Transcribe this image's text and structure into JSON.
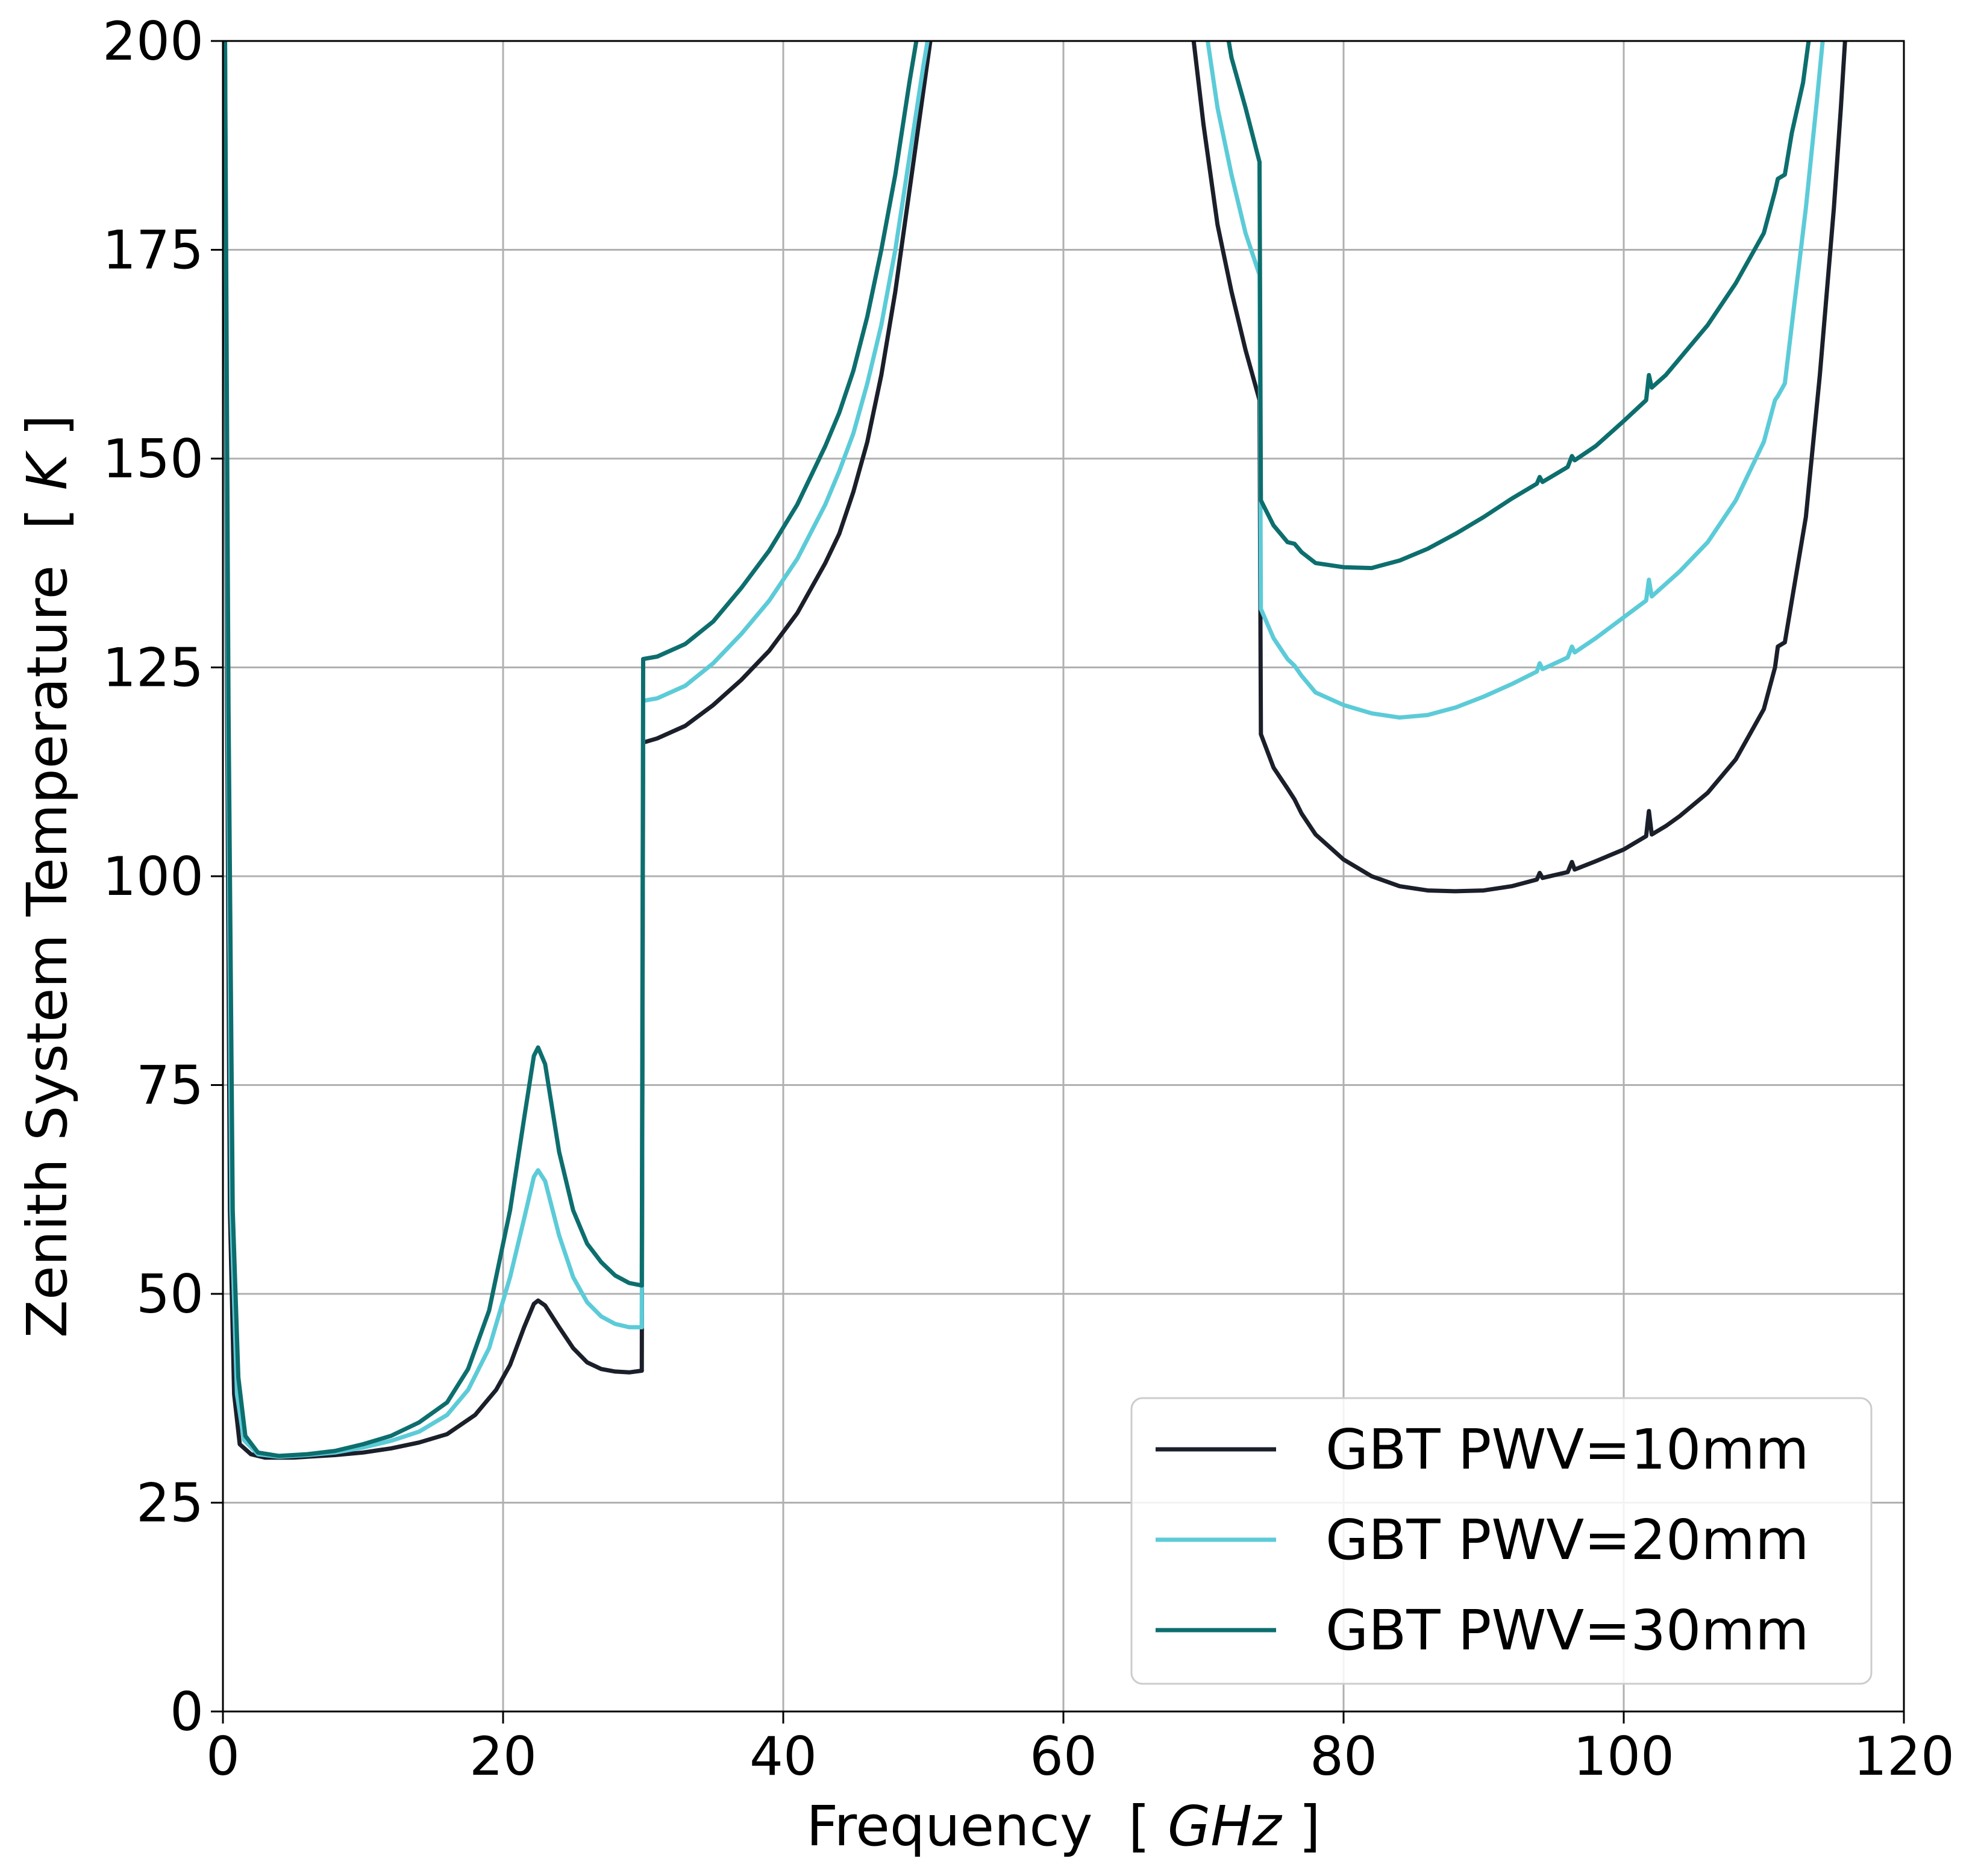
{
  "chart_data": {
    "type": "line",
    "title": "",
    "xlabel": {
      "main": "Frequency",
      "open": "[",
      "unit": "GHz",
      "close": "]"
    },
    "ylabel": {
      "main": "Zenith System Temperature",
      "open": "[",
      "unit": "K",
      "close": "]"
    },
    "xlim": [
      0,
      120
    ],
    "ylim": [
      0,
      200
    ],
    "xticks": [
      0,
      20,
      40,
      60,
      80,
      100,
      120
    ],
    "yticks": [
      0,
      25,
      50,
      75,
      100,
      125,
      150,
      175,
      200
    ],
    "grid": true,
    "legend_position": "lower-right",
    "series": [
      {
        "name": "GBT PWV=10mm",
        "color": "#1b1f2a",
        "segments": [
          [
            [
              0.15,
              200
            ],
            [
              0.3,
              120
            ],
            [
              0.5,
              60
            ],
            [
              0.8,
              38
            ],
            [
              1.2,
              32
            ],
            [
              2,
              30.8
            ],
            [
              3,
              30.4
            ],
            [
              5,
              30.4
            ],
            [
              8,
              30.7
            ],
            [
              10,
              31
            ],
            [
              12,
              31.5
            ],
            [
              14,
              32.2
            ],
            [
              16,
              33.2
            ],
            [
              18,
              35.5
            ],
            [
              19.5,
              38.5
            ],
            [
              20.5,
              41.5
            ],
            [
              21.5,
              46
            ],
            [
              22.2,
              48.8
            ],
            [
              22.5,
              49.2
            ],
            [
              23,
              48.6
            ],
            [
              24,
              46
            ],
            [
              25,
              43.5
            ],
            [
              26,
              41.8
            ],
            [
              27,
              41
            ],
            [
              28,
              40.7
            ],
            [
              29,
              40.6
            ],
            [
              29.9,
              40.8
            ]
          ],
          [
            [
              29.9,
              40.8
            ],
            [
              30,
              116
            ]
          ],
          [
            [
              30,
              116
            ],
            [
              31,
              116.5
            ],
            [
              33,
              118
            ],
            [
              35,
              120.5
            ],
            [
              37,
              123.5
            ],
            [
              39,
              127
            ],
            [
              41,
              131.5
            ],
            [
              43,
              137.5
            ],
            [
              44,
              141
            ],
            [
              45,
              146
            ],
            [
              46,
              152
            ],
            [
              47,
              160
            ],
            [
              48,
              170
            ],
            [
              49,
              182
            ],
            [
              50,
              194
            ],
            [
              50.5,
              200
            ]
          ],
          [
            [
              69.3,
              200
            ],
            [
              70,
              190
            ],
            [
              71,
              178
            ],
            [
              72,
              170
            ],
            [
              73,
              163
            ],
            [
              74,
              157
            ]
          ],
          [
            [
              74,
              157
            ],
            [
              74.1,
              117
            ]
          ],
          [
            [
              74.1,
              117
            ],
            [
              75,
              113
            ],
            [
              76,
              110.5
            ],
            [
              76.5,
              109.2
            ],
            [
              77,
              107.5
            ],
            [
              78,
              105
            ],
            [
              80,
              102
            ],
            [
              82,
              100
            ],
            [
              84,
              98.8
            ],
            [
              86,
              98.3
            ],
            [
              88,
              98.2
            ],
            [
              90,
              98.3
            ],
            [
              92,
              98.8
            ],
            [
              93.8,
              99.6
            ],
            [
              94,
              100.4
            ],
            [
              94.2,
              99.8
            ],
            [
              96,
              100.5
            ],
            [
              96.3,
              101.7
            ],
            [
              96.5,
              100.8
            ],
            [
              98,
              101.8
            ],
            [
              100,
              103.2
            ],
            [
              101.6,
              104.8
            ],
            [
              101.8,
              107.8
            ],
            [
              102,
              105
            ],
            [
              103,
              106
            ],
            [
              104,
              107.2
            ],
            [
              106,
              110
            ],
            [
              108,
              114
            ],
            [
              110,
              120
            ],
            [
              110.8,
              125
            ],
            [
              111,
              127.5
            ],
            [
              111.5,
              128
            ],
            [
              112,
              133
            ],
            [
              113,
              143
            ],
            [
              114,
              160
            ],
            [
              115,
              180
            ],
            [
              115.5,
              192
            ],
            [
              115.8,
              200
            ]
          ]
        ]
      },
      {
        "name": "GBT PWV=20mm",
        "color": "#5ccbd8",
        "segments": [
          [
            [
              0.15,
              200
            ],
            [
              0.35,
              120
            ],
            [
              0.6,
              60
            ],
            [
              1,
              38
            ],
            [
              1.5,
              32.5
            ],
            [
              2.5,
              30.8
            ],
            [
              4,
              30.5
            ],
            [
              6,
              30.7
            ],
            [
              8,
              31
            ],
            [
              10,
              31.6
            ],
            [
              12,
              32.4
            ],
            [
              14,
              33.5
            ],
            [
              16,
              35.5
            ],
            [
              17.5,
              38.5
            ],
            [
              19,
              43.5
            ],
            [
              20.5,
              52
            ],
            [
              21.5,
              59
            ],
            [
              22.2,
              64
            ],
            [
              22.5,
              64.8
            ],
            [
              23,
              63.5
            ],
            [
              24,
              57
            ],
            [
              25,
              52
            ],
            [
              26,
              49
            ],
            [
              27,
              47.3
            ],
            [
              28,
              46.4
            ],
            [
              29,
              46
            ],
            [
              29.9,
              46
            ]
          ],
          [
            [
              29.9,
              46
            ],
            [
              30,
              121
            ]
          ],
          [
            [
              30,
              121
            ],
            [
              31,
              121.3
            ],
            [
              33,
              122.8
            ],
            [
              35,
              125.5
            ],
            [
              37,
              129
            ],
            [
              39,
              133
            ],
            [
              41,
              138
            ],
            [
              43,
              144.5
            ],
            [
              44,
              148.5
            ],
            [
              45,
              153
            ],
            [
              46,
              159
            ],
            [
              47,
              166
            ],
            [
              48,
              175
            ],
            [
              49,
              186
            ],
            [
              50,
              197
            ],
            [
              50.3,
              200
            ]
          ],
          [
            [
              70.3,
              200
            ],
            [
              71,
              192
            ],
            [
              72,
              184
            ],
            [
              73,
              177
            ],
            [
              74,
              172
            ]
          ],
          [
            [
              74,
              172
            ],
            [
              74.1,
              132
            ]
          ],
          [
            [
              74.1,
              132
            ],
            [
              75,
              128.5
            ],
            [
              76,
              126
            ],
            [
              76.5,
              125.2
            ],
            [
              77,
              124
            ],
            [
              78,
              122
            ],
            [
              80,
              120.5
            ],
            [
              82,
              119.5
            ],
            [
              84,
              119
            ],
            [
              86,
              119.3
            ],
            [
              88,
              120.2
            ],
            [
              90,
              121.5
            ],
            [
              92,
              123
            ],
            [
              93.8,
              124.5
            ],
            [
              94,
              125.5
            ],
            [
              94.2,
              124.8
            ],
            [
              96,
              126.2
            ],
            [
              96.3,
              127.5
            ],
            [
              96.5,
              126.8
            ],
            [
              98,
              128.5
            ],
            [
              100,
              131
            ],
            [
              101.6,
              133
            ],
            [
              101.8,
              135.5
            ],
            [
              102,
              133.5
            ],
            [
              103,
              135
            ],
            [
              104,
              136.5
            ],
            [
              106,
              140
            ],
            [
              108,
              145
            ],
            [
              110,
              152
            ],
            [
              110.8,
              157
            ],
            [
              111,
              157.5
            ],
            [
              111.5,
              159
            ],
            [
              112,
              166
            ],
            [
              113,
              180
            ],
            [
              113.8,
              193
            ],
            [
              114.2,
              200
            ]
          ]
        ]
      },
      {
        "name": "GBT PWV=30mm",
        "color": "#0d6e6e",
        "segments": [
          [
            [
              0.15,
              200
            ],
            [
              0.4,
              120
            ],
            [
              0.7,
              60
            ],
            [
              1.1,
              40
            ],
            [
              1.6,
              33
            ],
            [
              2.5,
              31
            ],
            [
              4,
              30.6
            ],
            [
              6,
              30.8
            ],
            [
              8,
              31.2
            ],
            [
              10,
              32
            ],
            [
              12,
              33
            ],
            [
              14,
              34.6
            ],
            [
              16,
              37
            ],
            [
              17.5,
              41
            ],
            [
              19,
              48
            ],
            [
              20.5,
              60
            ],
            [
              21.5,
              71
            ],
            [
              22.2,
              78.5
            ],
            [
              22.5,
              79.5
            ],
            [
              23,
              77.5
            ],
            [
              24,
              67
            ],
            [
              25,
              60
            ],
            [
              26,
              56
            ],
            [
              27,
              53.8
            ],
            [
              28,
              52.2
            ],
            [
              29,
              51.3
            ],
            [
              29.9,
              51
            ]
          ],
          [
            [
              29.9,
              51
            ],
            [
              30,
              126
            ]
          ],
          [
            [
              30,
              126
            ],
            [
              31,
              126.3
            ],
            [
              33,
              127.8
            ],
            [
              35,
              130.5
            ],
            [
              37,
              134.5
            ],
            [
              39,
              139
            ],
            [
              41,
              144.5
            ],
            [
              43,
              151.5
            ],
            [
              44,
              155.5
            ],
            [
              45,
              160.5
            ],
            [
              46,
              167
            ],
            [
              47,
              175
            ],
            [
              48,
              184
            ],
            [
              49,
              195
            ],
            [
              49.5,
              200
            ]
          ],
          [
            [
              71.8,
              200
            ],
            [
              72,
              198
            ],
            [
              73,
              192
            ],
            [
              74,
              185.5
            ]
          ],
          [
            [
              74,
              185.5
            ],
            [
              74.1,
              145
            ]
          ],
          [
            [
              74.1,
              145
            ],
            [
              75,
              142
            ],
            [
              76,
              140
            ],
            [
              76.5,
              139.8
            ],
            [
              77,
              138.8
            ],
            [
              78,
              137.5
            ],
            [
              80,
              137
            ],
            [
              82,
              136.9
            ],
            [
              84,
              137.8
            ],
            [
              86,
              139.2
            ],
            [
              88,
              141
            ],
            [
              90,
              143
            ],
            [
              92,
              145.2
            ],
            [
              93.8,
              147
            ],
            [
              94,
              147.8
            ],
            [
              94.2,
              147.2
            ],
            [
              96,
              149
            ],
            [
              96.3,
              150.3
            ],
            [
              96.5,
              149.8
            ],
            [
              98,
              151.5
            ],
            [
              100,
              154.5
            ],
            [
              101.6,
              157
            ],
            [
              101.8,
              160
            ],
            [
              102,
              158.5
            ],
            [
              103,
              160
            ],
            [
              104,
              162
            ],
            [
              106,
              166
            ],
            [
              108,
              171
            ],
            [
              110,
              177
            ],
            [
              110.8,
              182
            ],
            [
              111,
              183.5
            ],
            [
              111.5,
              184
            ],
            [
              112,
              189
            ],
            [
              112.8,
              195
            ],
            [
              113.2,
              200
            ]
          ]
        ]
      }
    ]
  }
}
